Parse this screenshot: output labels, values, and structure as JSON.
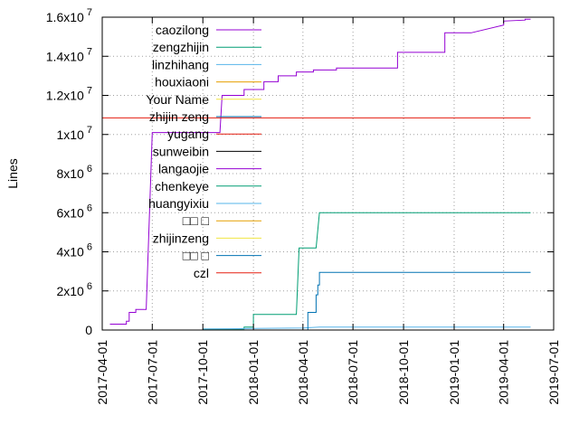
{
  "chart_data": {
    "type": "line",
    "title": "",
    "xlabel": "",
    "ylabel": "Lines",
    "x_type": "date",
    "xlim": [
      "2017-04-01",
      "2019-07-01"
    ],
    "ylim": [
      0,
      16000000
    ],
    "grid": true,
    "legend_position": "top-left (inside plot)",
    "x_ticks": [
      "2017-04-01",
      "2017-07-01",
      "2017-10-01",
      "2018-01-01",
      "2018-04-01",
      "2018-07-01",
      "2018-10-01",
      "2019-01-01",
      "2019-04-01",
      "2019-07-01"
    ],
    "y_ticks": [
      {
        "value": 0,
        "mant": "0",
        "exp": ""
      },
      {
        "value": 2000000,
        "mant": "2x10",
        "exp": "6"
      },
      {
        "value": 4000000,
        "mant": "4x10",
        "exp": "6"
      },
      {
        "value": 6000000,
        "mant": "6x10",
        "exp": "6"
      },
      {
        "value": 8000000,
        "mant": "8x10",
        "exp": "6"
      },
      {
        "value": 10000000,
        "mant": "1x10",
        "exp": "7"
      },
      {
        "value": 12000000,
        "mant": "1.2x10",
        "exp": "7"
      },
      {
        "value": 14000000,
        "mant": "1.4x10",
        "exp": "7"
      },
      {
        "value": 16000000,
        "mant": "1.6x10",
        "exp": "7"
      }
    ],
    "series": [
      {
        "name": "caozilong",
        "color": "#9400d3",
        "points": [
          [
            "2017-04-15",
            300000
          ],
          [
            "2017-05-15",
            300000
          ],
          [
            "2017-05-15",
            450000
          ],
          [
            "2017-05-20",
            450000
          ],
          [
            "2017-05-20",
            900000
          ],
          [
            "2017-06-01",
            900000
          ],
          [
            "2017-06-01",
            1050000
          ],
          [
            "2017-06-20",
            1050000
          ],
          [
            "2017-07-01",
            10100000
          ],
          [
            "2017-11-01",
            10100000
          ],
          [
            "2017-11-05",
            12000000
          ],
          [
            "2017-12-15",
            12000000
          ],
          [
            "2017-12-15",
            12300000
          ],
          [
            "2018-01-20",
            12300000
          ],
          [
            "2018-01-20",
            12700000
          ],
          [
            "2018-02-15",
            12700000
          ],
          [
            "2018-02-15",
            13000000
          ],
          [
            "2018-03-20",
            13000000
          ],
          [
            "2018-03-20",
            13200000
          ],
          [
            "2018-04-20",
            13200000
          ],
          [
            "2018-04-20",
            13300000
          ],
          [
            "2018-06-01",
            13300000
          ],
          [
            "2018-06-01",
            13400000
          ],
          [
            "2018-09-20",
            13400000
          ],
          [
            "2018-09-20",
            14200000
          ],
          [
            "2018-12-15",
            14200000
          ],
          [
            "2018-12-15",
            15200000
          ],
          [
            "2019-02-01",
            15200000
          ],
          [
            "2019-04-01",
            15600000
          ],
          [
            "2019-04-01",
            15800000
          ],
          [
            "2019-05-10",
            15850000
          ],
          [
            "2019-05-10",
            15900000
          ],
          [
            "2019-05-20",
            15900000
          ]
        ]
      },
      {
        "name": "zengzhijin",
        "color": "#009e73",
        "points": [
          [
            "2017-10-01",
            50000
          ],
          [
            "2017-12-15",
            50000
          ],
          [
            "2017-12-15",
            150000
          ],
          [
            "2018-01-01",
            150000
          ],
          [
            "2018-01-01",
            800000
          ],
          [
            "2018-03-20",
            800000
          ],
          [
            "2018-03-25",
            4200000
          ],
          [
            "2018-04-25",
            4200000
          ],
          [
            "2018-05-01",
            6000000
          ],
          [
            "2019-05-20",
            6000000
          ]
        ]
      },
      {
        "name": "linzhihang",
        "color": "#56b4e9",
        "points": [
          [
            "2017-10-01",
            50000
          ],
          [
            "2018-01-01",
            80000
          ],
          [
            "2018-04-01",
            100000
          ],
          [
            "2018-05-01",
            150000
          ],
          [
            "2019-05-20",
            150000
          ]
        ]
      },
      {
        "name": "houxiaoni",
        "color": "#e69f00",
        "points": []
      },
      {
        "name": "Your Name",
        "color": "#f0e442",
        "points": []
      },
      {
        "name": "zhijin zeng",
        "color": "#0072b2",
        "points": [
          [
            "2018-04-10",
            0
          ],
          [
            "2018-04-10",
            900000
          ],
          [
            "2018-04-25",
            900000
          ],
          [
            "2018-04-25",
            1800000
          ],
          [
            "2018-04-28",
            1800000
          ],
          [
            "2018-04-28",
            2300000
          ],
          [
            "2018-05-01",
            2300000
          ],
          [
            "2018-05-01",
            2950000
          ],
          [
            "2019-05-20",
            2950000
          ]
        ]
      },
      {
        "name": "yugang",
        "color": "#e51e10",
        "points": [
          [
            "2017-04-01",
            10850000
          ],
          [
            "2019-05-20",
            10850000
          ]
        ]
      },
      {
        "name": "sunweibin",
        "color": "#000000",
        "points": []
      },
      {
        "name": "langaojie",
        "color": "#9400d3",
        "points": []
      },
      {
        "name": "chenkeye",
        "color": "#009e73",
        "points": []
      },
      {
        "name": "huangyixiu",
        "color": "#56b4e9",
        "points": []
      },
      {
        "name": "□□ □",
        "color": "#e69f00",
        "points": []
      },
      {
        "name": "zhijinzeng",
        "color": "#f0e442",
        "points": []
      },
      {
        "name": "□□ □",
        "color": "#0072b2",
        "points": []
      },
      {
        "name": "czl",
        "color": "#e51e10",
        "points": []
      }
    ]
  }
}
